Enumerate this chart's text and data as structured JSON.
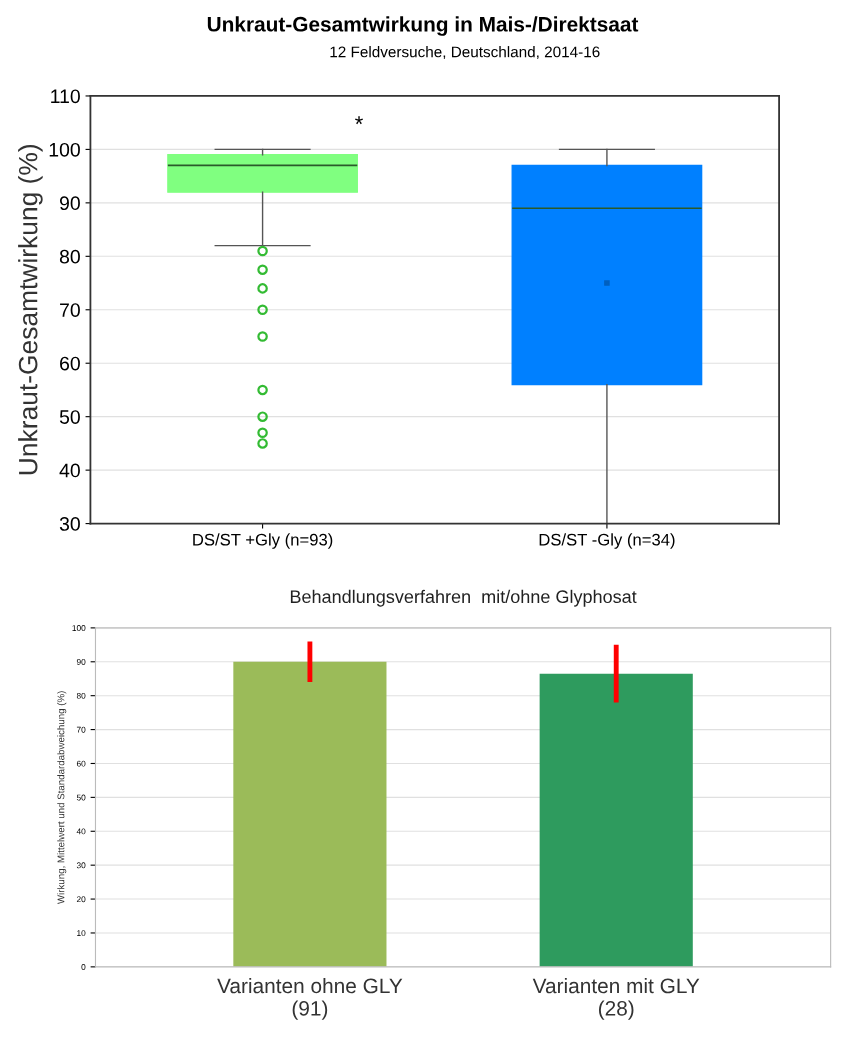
{
  "chart_data": [
    {
      "type": "box",
      "title": "Unkraut-Gesamtwirkung in Mais-/Direktsaat",
      "subtitle": "12 Feldversuche, Deutschland, 2014-16",
      "ylabel": "Unkraut-Gesamtwirkung (%)",
      "categories": [
        "DS/ST +Gly (n=93)",
        "DS/ST -Gly (n=34)"
      ],
      "colors": [
        "#80ff80",
        "#0080ff"
      ],
      "boxes": [
        {
          "low": 82,
          "q1": 92,
          "median": 97,
          "q3": 99,
          "high": 100,
          "outliers": [
            81,
            77.5,
            74,
            70,
            65,
            55,
            50,
            47,
            45
          ]
        },
        {
          "low": 30,
          "q1": 56,
          "median": 89,
          "q3": 97,
          "high": 100,
          "mean": 75
        }
      ],
      "annotations": [
        "*"
      ],
      "ylim": [
        30,
        110
      ],
      "yticks": [
        30,
        40,
        50,
        60,
        70,
        80,
        90,
        100,
        110
      ],
      "grid": "y"
    },
    {
      "type": "bar",
      "title": "Behandlungsverfahren  mit/ohne Glyphosat",
      "ylabel": "Wirkung, Mittelwert und Standardabweichung (%)",
      "categories": [
        "Varianten ohne GLY\n(91)",
        "Varianten mit GLY\n(28)"
      ],
      "values": [
        90,
        86.5
      ],
      "colors": [
        "#9bbb59",
        "#2e9b5e"
      ],
      "errors": [
        6,
        8.5
      ],
      "ylim": [
        0,
        100
      ],
      "yticks": [
        0,
        10,
        20,
        30,
        40,
        50,
        60,
        70,
        80,
        90,
        100
      ],
      "grid": "y"
    }
  ]
}
